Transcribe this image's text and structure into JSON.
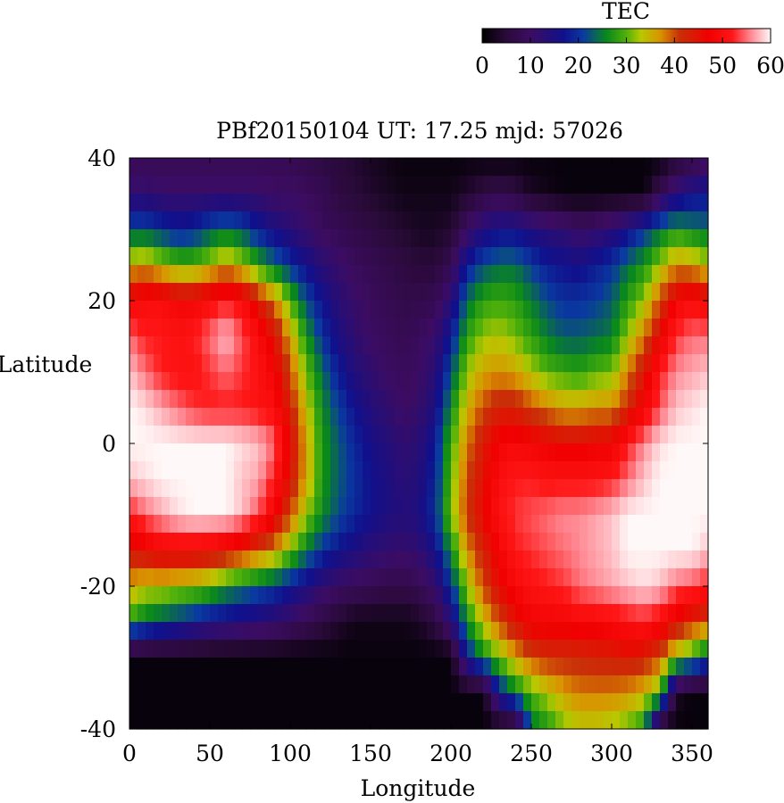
{
  "chart_data": {
    "type": "heatmap",
    "title": "PBf20150104  UT: 17.25  mjd: 57026",
    "xlabel": "Longitude",
    "ylabel": "Latitude",
    "xlim": [
      0,
      360
    ],
    "ylim": [
      -40,
      40
    ],
    "xticks": [
      0,
      50,
      100,
      150,
      200,
      250,
      300,
      350
    ],
    "yticks": [
      -40,
      -20,
      0,
      20,
      40
    ],
    "colorbar": {
      "label": "TEC",
      "range": [
        0,
        60
      ],
      "ticks": [
        0,
        10,
        20,
        30,
        40,
        50,
        60
      ],
      "colors": [
        {
          "v": 0,
          "c": "#000000"
        },
        {
          "v": 5,
          "c": "#2a0a3a"
        },
        {
          "v": 10,
          "c": "#3c0c62"
        },
        {
          "v": 17,
          "c": "#10108c"
        },
        {
          "v": 21,
          "c": "#0a3aa0"
        },
        {
          "v": 26,
          "c": "#0a8a1a"
        },
        {
          "v": 30,
          "c": "#50b00a"
        },
        {
          "v": 33,
          "c": "#b8c800"
        },
        {
          "v": 37,
          "c": "#d89400"
        },
        {
          "v": 41,
          "c": "#c83008"
        },
        {
          "v": 47,
          "c": "#f00000"
        },
        {
          "v": 52,
          "c": "#ff1616"
        },
        {
          "v": 56,
          "c": "#ff8c96"
        },
        {
          "v": 60,
          "c": "#fff8f8"
        }
      ]
    },
    "grid": {
      "longitudes": [
        0,
        10,
        20,
        30,
        40,
        50,
        60,
        70,
        80,
        90,
        100,
        110,
        120,
        130,
        140,
        150,
        160,
        170,
        180,
        190,
        200,
        210,
        220,
        230,
        240,
        250,
        260,
        270,
        280,
        290,
        300,
        310,
        320,
        330,
        340,
        350,
        360
      ],
      "latitudes": [
        40,
        35,
        30,
        25,
        20,
        15,
        10,
        5,
        0,
        -5,
        -10,
        -15,
        -20,
        -25,
        -30,
        -35,
        -40
      ],
      "tec": [
        [
          8,
          8,
          8,
          8,
          8,
          8,
          8,
          8,
          8,
          8,
          8,
          7,
          6,
          5,
          4,
          3,
          2,
          1,
          1,
          1,
          1,
          1,
          1,
          1,
          1,
          1,
          1,
          1,
          1,
          1,
          1,
          1,
          1,
          1,
          4,
          6,
          8
        ],
        [
          12,
          12,
          11,
          11,
          11,
          11,
          11,
          11,
          11,
          10,
          10,
          9,
          8,
          6,
          5,
          4,
          3,
          2,
          2,
          2,
          2,
          4,
          6,
          7,
          6,
          3,
          2,
          1,
          1,
          1,
          1,
          1,
          1,
          8,
          13,
          16,
          17
        ],
        [
          22,
          22,
          20,
          18,
          19,
          22,
          24,
          22,
          18,
          15,
          13,
          11,
          9,
          8,
          7,
          6,
          5,
          4,
          3,
          3,
          4,
          10,
          14,
          16,
          16,
          14,
          13,
          12,
          10,
          11,
          13,
          16,
          20,
          24,
          27,
          25,
          24
        ],
        [
          35,
          36,
          33,
          30,
          30,
          33,
          36,
          33,
          28,
          24,
          20,
          16,
          13,
          11,
          9,
          8,
          7,
          6,
          5,
          5,
          8,
          18,
          22,
          24,
          24,
          21,
          18,
          17,
          16,
          18,
          20,
          24,
          27,
          32,
          37,
          36,
          33
        ],
        [
          48,
          50,
          50,
          48,
          48,
          50,
          52,
          50,
          44,
          38,
          30,
          22,
          17,
          13,
          11,
          9,
          8,
          7,
          7,
          8,
          13,
          24,
          28,
          29,
          28,
          25,
          22,
          20,
          20,
          21,
          23,
          28,
          32,
          40,
          48,
          50,
          48
        ],
        [
          55,
          52,
          52,
          51,
          52,
          55,
          58,
          54,
          50,
          45,
          36,
          27,
          20,
          15,
          12,
          10,
          9,
          8,
          9,
          11,
          18,
          28,
          32,
          33,
          31,
          28,
          25,
          23,
          23,
          24,
          25,
          32,
          38,
          46,
          53,
          55,
          55
        ],
        [
          58,
          55,
          52,
          51,
          51,
          53,
          55,
          53,
          51,
          48,
          40,
          31,
          24,
          18,
          14,
          12,
          10,
          9,
          10,
          13,
          22,
          32,
          36,
          37,
          36,
          33,
          30,
          29,
          28,
          30,
          31,
          38,
          44,
          52,
          56,
          57,
          58
        ],
        [
          60,
          59,
          57,
          55,
          53,
          52,
          52,
          52,
          51,
          50,
          43,
          34,
          26,
          21,
          17,
          14,
          12,
          10,
          11,
          15,
          26,
          35,
          40,
          43,
          43,
          40,
          38,
          36,
          36,
          37,
          37,
          42,
          48,
          54,
          58,
          59,
          60
        ],
        [
          60,
          60,
          60,
          60,
          60,
          60,
          60,
          59,
          58,
          55,
          46,
          36,
          27,
          23,
          19,
          16,
          14,
          12,
          13,
          18,
          29,
          38,
          44,
          48,
          49,
          48,
          47,
          46,
          46,
          47,
          47,
          52,
          56,
          59,
          60,
          60,
          60
        ],
        [
          58,
          59,
          60,
          60,
          60,
          60,
          60,
          58,
          57,
          52,
          44,
          36,
          27,
          23,
          20,
          17,
          15,
          13,
          14,
          19,
          30,
          40,
          45,
          50,
          52,
          52,
          51,
          51,
          51,
          51,
          52,
          55,
          58,
          60,
          60,
          60,
          60
        ],
        [
          52,
          55,
          57,
          59,
          60,
          60,
          60,
          58,
          54,
          48,
          40,
          32,
          26,
          22,
          19,
          17,
          15,
          14,
          15,
          20,
          31,
          41,
          46,
          51,
          53,
          54,
          55,
          56,
          56,
          57,
          58,
          60,
          60,
          60,
          60,
          60,
          60
        ],
        [
          44,
          46,
          48,
          48,
          48,
          47,
          45,
          43,
          40,
          37,
          31,
          25,
          20,
          17,
          15,
          13,
          12,
          11,
          12,
          16,
          26,
          37,
          43,
          48,
          52,
          53,
          54,
          55,
          56,
          57,
          58,
          60,
          60,
          60,
          60,
          60,
          58
        ],
        [
          36,
          34,
          34,
          33,
          32,
          30,
          27,
          25,
          23,
          21,
          18,
          15,
          12,
          10,
          9,
          8,
          7,
          7,
          8,
          11,
          20,
          32,
          40,
          46,
          49,
          51,
          52,
          53,
          55,
          56,
          57,
          58,
          59,
          58,
          55,
          54,
          52
        ],
        [
          28,
          24,
          22,
          20,
          18,
          16,
          15,
          14,
          13,
          12,
          10,
          8,
          6,
          4,
          2,
          2,
          2,
          2,
          3,
          6,
          13,
          26,
          34,
          40,
          45,
          48,
          48,
          48,
          49,
          49,
          50,
          51,
          52,
          50,
          45,
          42,
          40
        ],
        [
          1,
          1,
          1,
          1,
          1,
          1,
          1,
          1,
          1,
          1,
          1,
          1,
          1,
          1,
          1,
          1,
          1,
          1,
          1,
          1,
          1,
          18,
          26,
          31,
          36,
          40,
          42,
          42,
          42,
          43,
          43,
          44,
          43,
          40,
          32,
          28,
          22
        ],
        [
          1,
          1,
          1,
          1,
          1,
          1,
          1,
          1,
          1,
          1,
          1,
          1,
          1,
          1,
          1,
          1,
          1,
          1,
          1,
          1,
          1,
          1,
          1,
          18,
          25,
          30,
          33,
          36,
          38,
          38,
          38,
          37,
          35,
          30,
          3,
          1,
          1
        ],
        [
          1,
          1,
          1,
          1,
          1,
          1,
          1,
          1,
          1,
          1,
          1,
          1,
          1,
          1,
          1,
          1,
          1,
          1,
          1,
          1,
          1,
          1,
          1,
          1,
          1,
          24,
          27,
          31,
          33,
          33,
          32,
          30,
          27,
          1,
          1,
          1,
          1
        ]
      ]
    }
  }
}
